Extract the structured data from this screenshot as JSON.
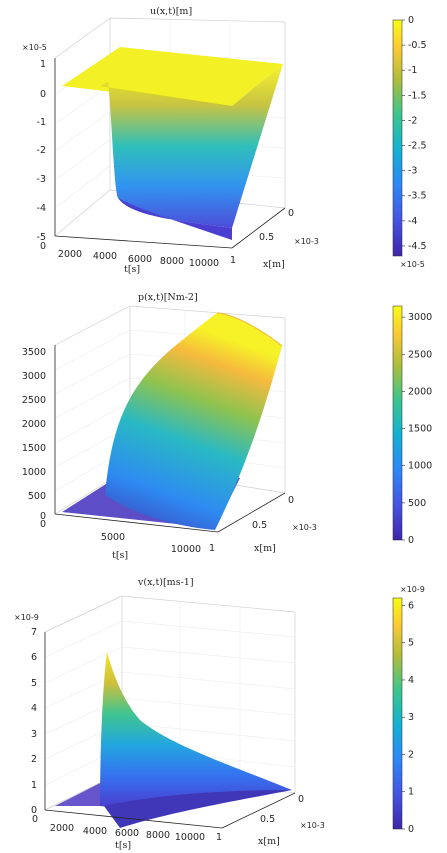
{
  "chart_data": [
    {
      "type": "surface",
      "title": "u(x,t)[m]",
      "xlabel": "t[s]",
      "ylabel": "x[m]",
      "zlabel": "",
      "t_ticks": [
        "2000",
        "4000",
        "6000",
        "8000",
        "10000"
      ],
      "x_ticks": [
        "0",
        "0.5",
        "1"
      ],
      "x_exponent": "×10-3",
      "z_ticks": [
        "1",
        "0",
        "-1",
        "-2",
        "-3",
        "-4",
        "-5"
      ],
      "z_exponent": "×10-5",
      "zlim": [
        -5,
        1
      ],
      "colorbar": {
        "range": [
          -4.7,
          0
        ],
        "ticks": [
          "0",
          "-0.5",
          "-1",
          "-1.5",
          "-2",
          "-2.5",
          "-3",
          "-3.5",
          "-4",
          "-4.5"
        ],
        "exponent": "×10-5"
      },
      "description_values": {
        "t_range": [
          0,
          10500
        ],
        "x_range": [
          0,
          0.001
        ],
        "value_at_x0": 0,
        "value_at_x1_late_t": -4.7
      }
    },
    {
      "type": "surface",
      "title": "p(x,t)[Nm-2]",
      "xlabel": "t[s]",
      "ylabel": "x[m]",
      "zlabel": "",
      "t_ticks": [
        "0",
        "5000",
        "10000"
      ],
      "x_ticks": [
        "0",
        "0.5",
        "1"
      ],
      "x_exponent": "×10-3",
      "z_ticks": [
        "3500",
        "3000",
        "2500",
        "2000",
        "1500",
        "1000",
        "500",
        "0"
      ],
      "zlim": [
        0,
        3500
      ],
      "colorbar": {
        "range": [
          0,
          3150
        ],
        "ticks": [
          "3000",
          "2500",
          "2000",
          "1500",
          "1000",
          "500",
          "0"
        ]
      },
      "description_values": {
        "t_range": [
          0,
          10500
        ],
        "x_range": [
          0,
          0.001
        ],
        "peak_value": 3150
      }
    },
    {
      "type": "surface",
      "title": "v(x,t)[ms-1]",
      "xlabel": "t[s]",
      "ylabel": "x[m]",
      "zlabel": "",
      "t_ticks": [
        "0",
        "2000",
        "4000",
        "6000",
        "8000",
        "10000"
      ],
      "x_ticks": [
        "0",
        "0.5",
        "1"
      ],
      "x_exponent": "×10-3",
      "z_ticks": [
        "7",
        "6",
        "5",
        "4",
        "3",
        "2",
        "1",
        "0"
      ],
      "z_exponent": "×10-9",
      "zlim": [
        0,
        7
      ],
      "colorbar": {
        "range": [
          0,
          6.2
        ],
        "ticks": [
          "6",
          "5",
          "4",
          "3",
          "2",
          "1",
          "0"
        ],
        "exponent": "×10-9"
      },
      "description_values": {
        "t_range": [
          0,
          10500
        ],
        "x_range": [
          0,
          0.001
        ],
        "peak_value": 6.2,
        "peak_t": 2000
      }
    }
  ]
}
